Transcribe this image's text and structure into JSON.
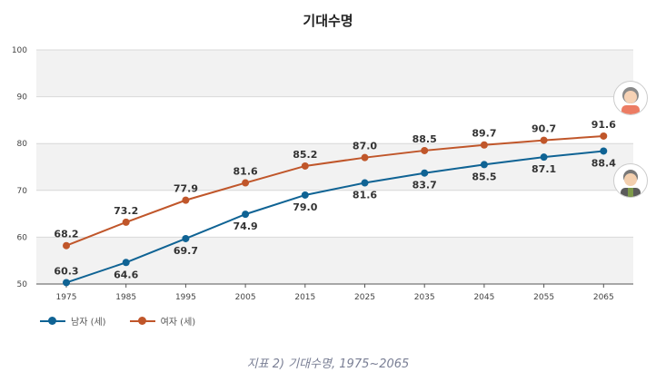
{
  "chart_data": {
    "type": "line",
    "title": "기대수명",
    "categories": [
      "1975",
      "1985",
      "1995",
      "2005",
      "2015",
      "2025",
      "2035",
      "2045",
      "2055",
      "2065"
    ],
    "yticks": [
      50,
      60,
      70,
      80,
      90,
      100
    ],
    "ylim": [
      50,
      100
    ],
    "grid": true,
    "legend_placement": "bottom-left",
    "series": [
      {
        "name": "남자 (세)",
        "color": "#0f6394",
        "values": [
          60.3,
          64.6,
          69.7,
          74.9,
          79.0,
          81.6,
          83.7,
          85.5,
          87.1,
          88.4
        ]
      },
      {
        "name": "여자 (세)",
        "color": "#c0562a",
        "values": [
          68.2,
          73.2,
          77.9,
          81.6,
          85.2,
          87.0,
          88.5,
          89.7,
          90.7,
          91.6
        ]
      }
    ]
  },
  "caption": "지표 2) 기대수명, 1975~2065",
  "icons": {
    "female": "female-avatar-icon",
    "male": "male-avatar-icon"
  }
}
